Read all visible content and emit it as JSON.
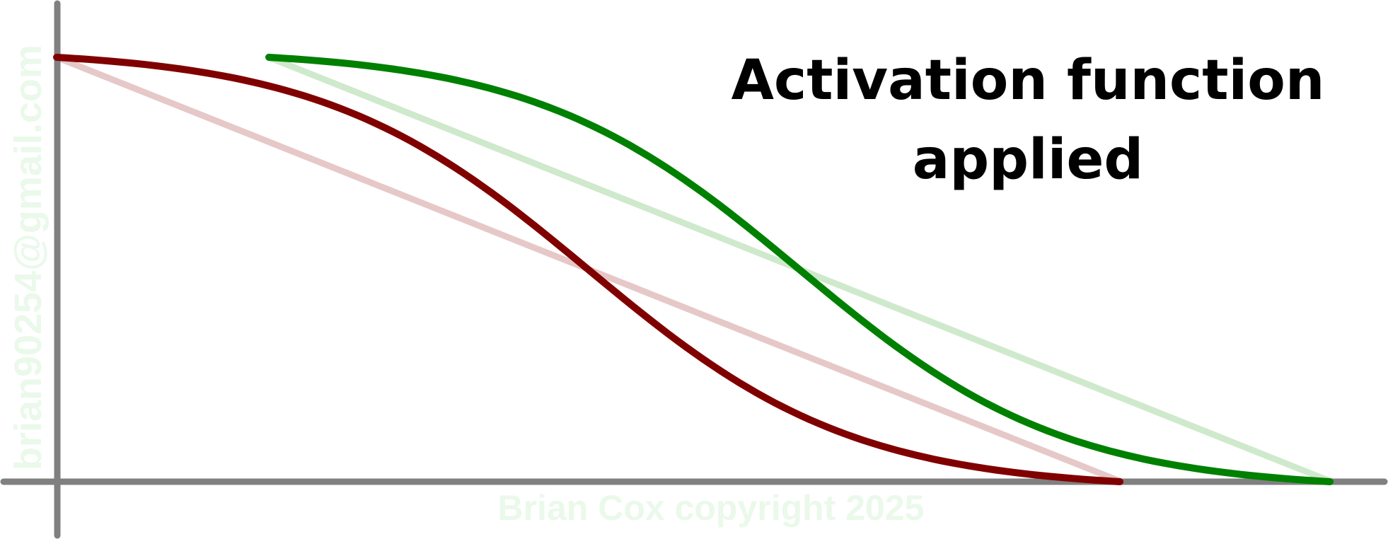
{
  "title": {
    "line1": "Activation function",
    "line2": "applied"
  },
  "watermarks": {
    "email": "brian90254@gmail.com",
    "copyright": "Brian Cox copyright 2025"
  },
  "colors": {
    "axis": "#808080",
    "red_curve": "#800000",
    "red_line_faded": "#e6c8c8",
    "green_curve": "#008000",
    "green_line_faded": "#cfe9cc",
    "title": "#000000",
    "watermark": "#eaf9ea"
  },
  "curves": [
    {
      "name": "red",
      "description_shape": "sigmoid"
    },
    {
      "name": "green",
      "description_shape": "sigmoid"
    }
  ]
}
